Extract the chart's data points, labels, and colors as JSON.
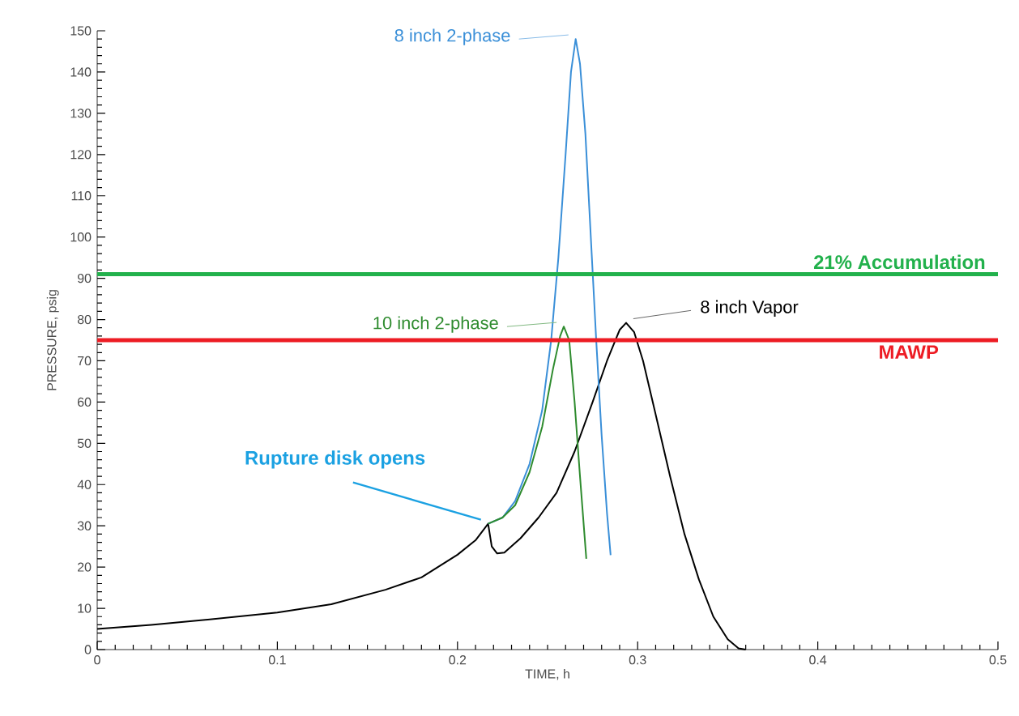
{
  "chart_data": {
    "type": "line",
    "xlabel": "TIME, h",
    "ylabel": "PRESSURE, psig",
    "xlim": [
      0,
      0.5
    ],
    "ylim": [
      0,
      150
    ],
    "xticks": [
      0,
      0.1,
      0.2,
      0.3,
      0.4,
      0.5
    ],
    "yticks": [
      0,
      10,
      20,
      30,
      40,
      50,
      60,
      70,
      80,
      90,
      100,
      110,
      120,
      130,
      140,
      150
    ],
    "grid": false,
    "legend": false,
    "marker": "none",
    "line_style": "solid",
    "series": [
      {
        "name": "8 inch Vapor",
        "color": "#000000",
        "x": [
          0,
          0.03,
          0.06,
          0.1,
          0.13,
          0.16,
          0.18,
          0.2,
          0.21,
          0.217,
          0.219,
          0.222,
          0.226,
          0.235,
          0.245,
          0.255,
          0.265,
          0.275,
          0.283,
          0.29,
          0.2936,
          0.298,
          0.303,
          0.31,
          0.318,
          0.326,
          0.334,
          0.342,
          0.35,
          0.356,
          0.36
        ],
        "values": [
          5,
          6,
          7.2,
          9,
          11,
          14.5,
          17.5,
          23,
          26.5,
          30.5,
          25,
          23.3,
          23.5,
          27,
          32,
          38,
          48,
          60,
          70,
          77.5,
          79.2,
          77,
          70,
          57,
          42,
          28,
          17,
          8,
          2.5,
          0.3,
          0
        ]
      },
      {
        "name": "8 inch 2-phase",
        "color": "#3a8fd8",
        "x": [
          0.217,
          0.225,
          0.232,
          0.24,
          0.247,
          0.252,
          0.256,
          0.26,
          0.263,
          0.2656,
          0.268,
          0.271,
          0.274,
          0.277,
          0.28,
          0.283,
          0.285
        ],
        "values": [
          30.5,
          32,
          36,
          45,
          58,
          75,
          95,
          120,
          140,
          148,
          142,
          125,
          100,
          75,
          52,
          33,
          22.9
        ]
      },
      {
        "name": "10 inch 2-phase",
        "color": "#2e8b2e",
        "x": [
          0.217,
          0.225,
          0.232,
          0.24,
          0.247,
          0.253,
          0.257,
          0.259,
          0.262,
          0.265,
          0.268,
          0.2715
        ],
        "values": [
          30.5,
          32,
          35,
          43,
          54,
          68,
          76,
          78.3,
          75,
          60,
          42,
          22
        ]
      }
    ],
    "ref_lines": [
      {
        "axis": "y",
        "value": 91,
        "label": "21% Accumulation",
        "color": "#22b14c"
      },
      {
        "axis": "y",
        "value": 75,
        "label": "MAWP",
        "color": "#ed1c24"
      }
    ],
    "annotations": [
      {
        "text": "Rupture disk opens",
        "x": 0.217,
        "y": 30.5
      }
    ]
  }
}
